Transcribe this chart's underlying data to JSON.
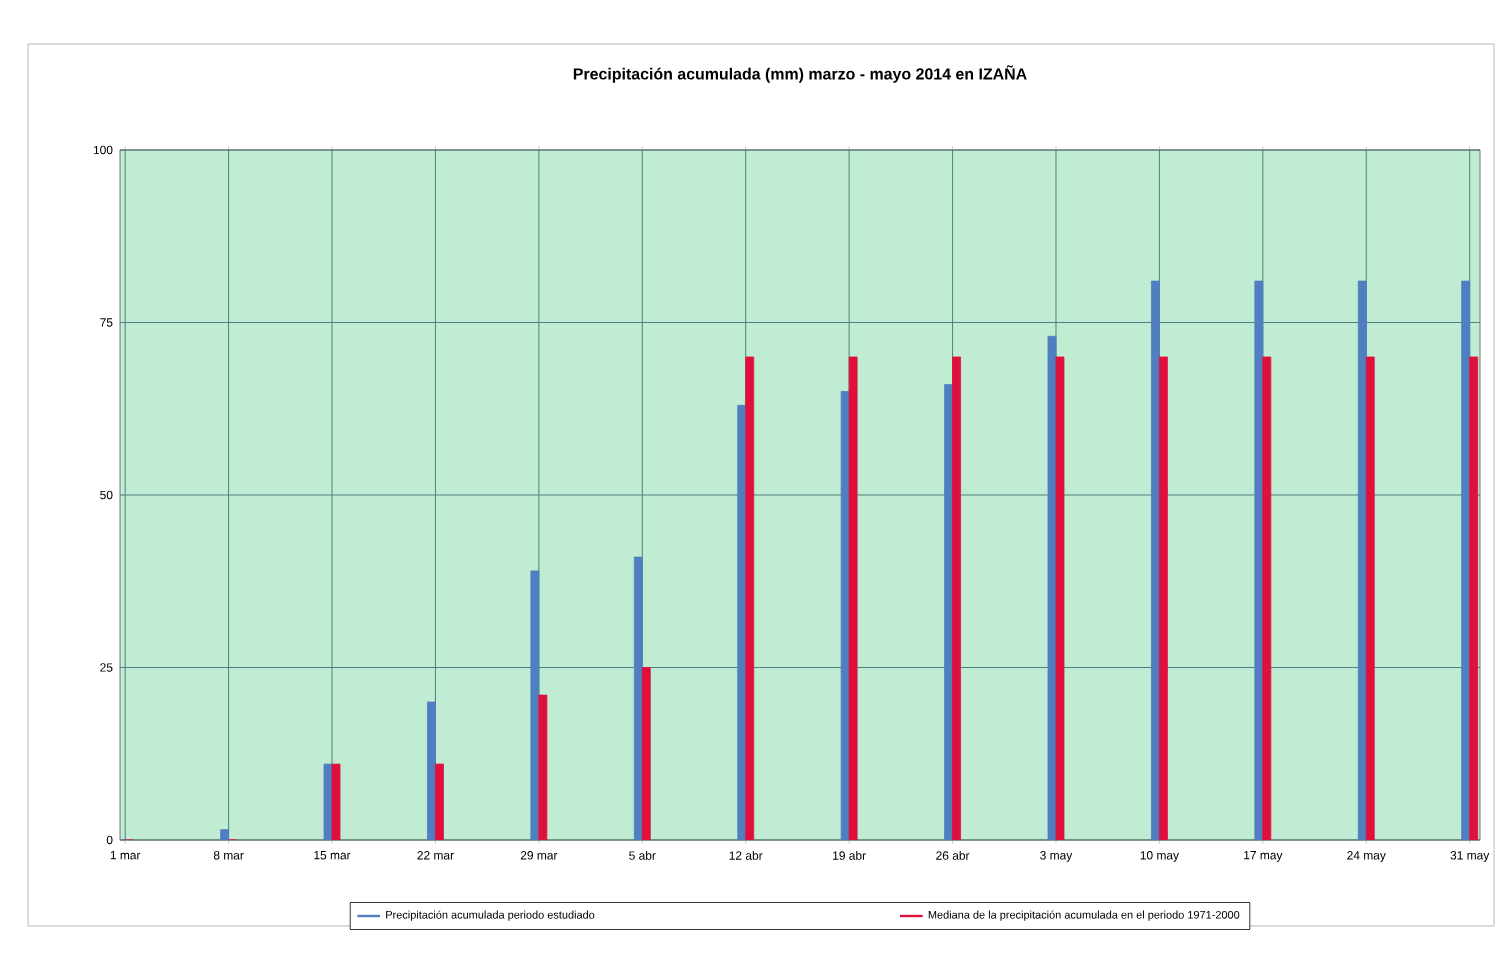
{
  "chart_data": {
    "type": "bar",
    "title": "Precipitación acumulada (mm) marzo - mayo 2014 en IZAÑA",
    "categories": [
      "1 mar",
      "8 mar",
      "15 mar",
      "22 mar",
      "29 mar",
      "5 abr",
      "12 abr",
      "19 abr",
      "26 abr",
      "3 may",
      "10 may",
      "17 may",
      "24 may",
      "31 may"
    ],
    "series": [
      {
        "name": "Precipitación acumulada periodo estudiado",
        "color": "#4f7fc0",
        "values": [
          0,
          1.5,
          11,
          20,
          39,
          41,
          63,
          65,
          66,
          73,
          81,
          81,
          81,
          81
        ]
      },
      {
        "name": "Mediana de la precipitación acumulada en el periodo 1971-2000",
        "color": "#e0103c",
        "values": [
          0,
          0,
          11,
          11,
          21,
          25,
          70,
          70,
          70,
          70,
          70,
          70,
          70,
          70
        ]
      }
    ],
    "ylim": [
      0,
      100
    ],
    "yticks": [
      0,
      25,
      50,
      75,
      100
    ],
    "grid": true,
    "legend": "bottom"
  }
}
